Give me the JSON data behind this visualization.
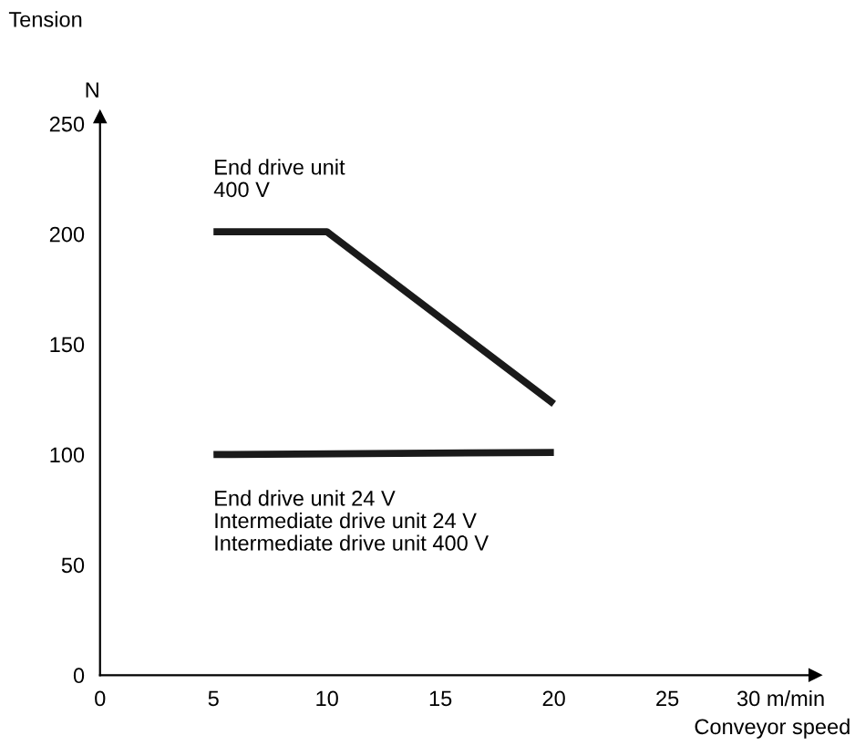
{
  "chart_data": {
    "type": "line",
    "xlabel": "Conveyor speed",
    "ylabel": "Tension",
    "annotations": [
      "N"
    ],
    "xlim": [
      0,
      31.5
    ],
    "ylim": [
      0,
      253
    ],
    "xticks": [
      0,
      5,
      10,
      15,
      20,
      25,
      {
        "value": 30,
        "label": "30 m/min"
      }
    ],
    "yticks": [
      0,
      50,
      100,
      150,
      200,
      250
    ],
    "grid": false,
    "legend": false,
    "marker": "none",
    "line_style": "solid",
    "series": [
      {
        "name": "End drive unit\n400 V",
        "color": "#1a1a1a",
        "x": [
          5,
          10,
          20
        ],
        "values": [
          201,
          201,
          123
        ]
      },
      {
        "name": "End drive unit 24 V\nIntermediate drive unit 24 V\nIntermediate drive unit 400 V",
        "color": "#1a1a1a",
        "x": [
          5,
          20
        ],
        "values": [
          100,
          101
        ]
      }
    ]
  }
}
